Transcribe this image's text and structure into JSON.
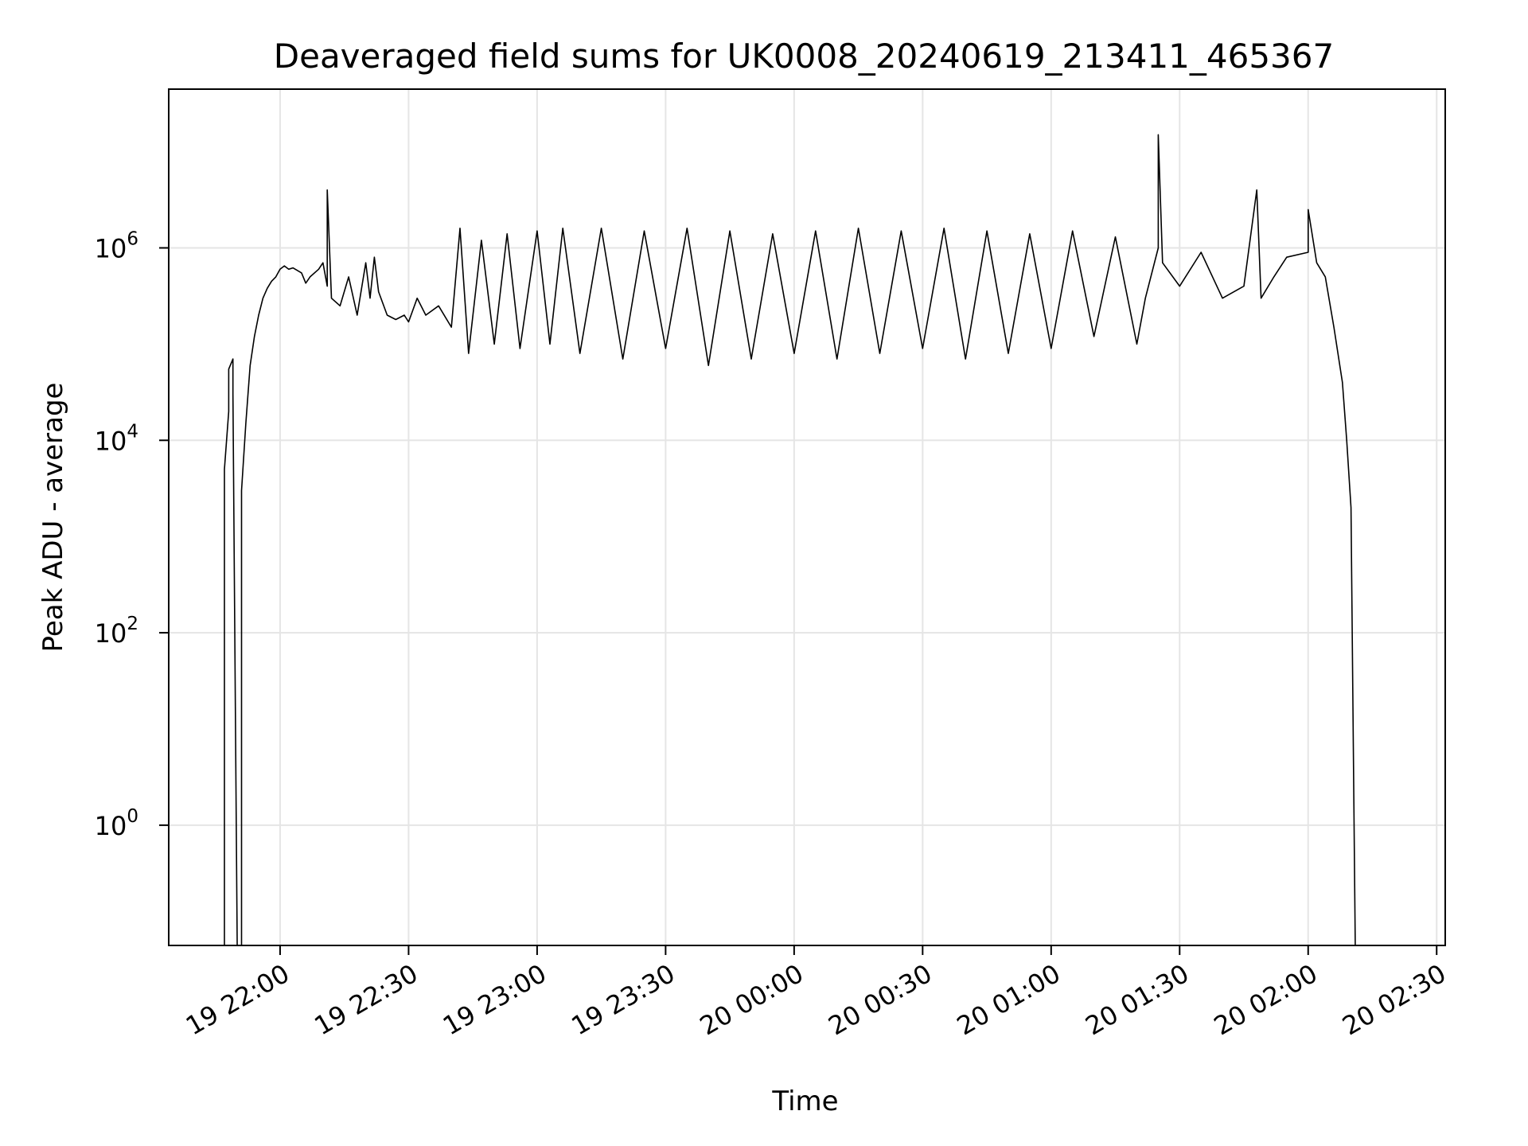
{
  "chart_data": {
    "type": "line",
    "title": "Deaveraged field sums for UK0008_20240619_213411_465367",
    "xlabel": "Time",
    "ylabel": "Peak ADU - average",
    "y_scale": "log",
    "grid": true,
    "legend": "none",
    "line_color": "#000000",
    "xlim": [
      "19 21:34",
      "20 02:32"
    ],
    "ylim_exponent": [
      -1.25,
      7.65
    ],
    "x_ticks": [
      "19 22:00",
      "19 22:30",
      "19 23:00",
      "19 23:30",
      "20 00:00",
      "20 00:30",
      "20 01:00",
      "20 01:30",
      "20 02:00",
      "20 02:30"
    ],
    "y_ticks": [
      {
        "base": "10",
        "exp": "0",
        "value": 1
      },
      {
        "base": "10",
        "exp": "2",
        "value": 100
      },
      {
        "base": "10",
        "exp": "4",
        "value": 10000
      },
      {
        "base": "10",
        "exp": "6",
        "value": 1000000
      }
    ],
    "series": [
      {
        "values_note_format": "[time, peak_adu]",
        "points": [
          [
            "19 21:47",
            0.05
          ],
          [
            "19 21:47",
            5000
          ],
          [
            "19 21:48",
            20000
          ],
          [
            "19 21:48",
            55000
          ],
          [
            "19 21:49",
            70000
          ],
          [
            "19 21:49",
            30000
          ],
          [
            "19 21:50",
            0.05
          ],
          [
            "19 21:51",
            0.05
          ],
          [
            "19 21:51",
            1.0
          ],
          [
            "19 21:51",
            3000
          ],
          [
            "19 21:52",
            15000
          ],
          [
            "19 21:53",
            60000
          ],
          [
            "19 21:54",
            120000
          ],
          [
            "19 21:55",
            200000
          ],
          [
            "19 21:56",
            300000
          ],
          [
            "19 21:57",
            380000
          ],
          [
            "19 21:58",
            450000
          ],
          [
            "19 21:59",
            500000
          ],
          [
            "19 22:00",
            600000
          ],
          [
            "19 22:01",
            650000
          ],
          [
            "19 22:02",
            600000
          ],
          [
            "19 22:03",
            620000
          ],
          [
            "19 22:05",
            550000
          ],
          [
            "19 22:06",
            430000
          ],
          [
            "19 22:07",
            500000
          ],
          [
            "19 22:09",
            600000
          ],
          [
            "19 22:10",
            700000
          ],
          [
            "19 22:11",
            400000
          ],
          [
            "19 22:11",
            4000000
          ],
          [
            "19 22:12",
            300000
          ],
          [
            "19 22:14",
            250000
          ],
          [
            "19 22:16",
            500000
          ],
          [
            "19 22:18",
            200000
          ],
          [
            "19 22:20",
            700000
          ],
          [
            "19 22:21",
            300000
          ],
          [
            "19 22:22",
            800000
          ],
          [
            "19 22:23",
            350000
          ],
          [
            "19 22:25",
            200000
          ],
          [
            "19 22:27",
            180000
          ],
          [
            "19 22:29",
            200000
          ],
          [
            "19 22:30",
            170000
          ],
          [
            "19 22:32",
            300000
          ],
          [
            "19 22:34",
            200000
          ],
          [
            "19 22:37",
            250000
          ],
          [
            "19 22:40",
            150000
          ],
          [
            "19 22:42",
            1600000
          ],
          [
            "19 22:44",
            80000
          ],
          [
            "19 22:47",
            1200000
          ],
          [
            "19 22:50",
            100000
          ],
          [
            "19 22:53",
            1400000
          ],
          [
            "19 22:56",
            90000
          ],
          [
            "19 23:00",
            1500000
          ],
          [
            "19 23:03",
            100000
          ],
          [
            "19 23:06",
            1600000
          ],
          [
            "19 23:10",
            80000
          ],
          [
            "19 23:15",
            1600000
          ],
          [
            "19 23:20",
            70000
          ],
          [
            "19 23:25",
            1500000
          ],
          [
            "19 23:30",
            90000
          ],
          [
            "19 23:35",
            1600000
          ],
          [
            "19 23:40",
            60000
          ],
          [
            "19 23:45",
            1500000
          ],
          [
            "19 23:50",
            70000
          ],
          [
            "19 23:55",
            1400000
          ],
          [
            "20 00:00",
            80000
          ],
          [
            "20 00:05",
            1500000
          ],
          [
            "20 00:10",
            70000
          ],
          [
            "20 00:15",
            1600000
          ],
          [
            "20 00:20",
            80000
          ],
          [
            "20 00:25",
            1500000
          ],
          [
            "20 00:30",
            90000
          ],
          [
            "20 00:35",
            1600000
          ],
          [
            "20 00:40",
            70000
          ],
          [
            "20 00:45",
            1500000
          ],
          [
            "20 00:50",
            80000
          ],
          [
            "20 00:55",
            1400000
          ],
          [
            "20 01:00",
            90000
          ],
          [
            "20 01:05",
            1500000
          ],
          [
            "20 01:10",
            120000
          ],
          [
            "20 01:15",
            1300000
          ],
          [
            "20 01:20",
            100000
          ],
          [
            "20 01:22",
            300000
          ],
          [
            "20 01:25",
            1000000
          ],
          [
            "20 01:25",
            15000000
          ],
          [
            "20 01:26",
            700000
          ],
          [
            "20 01:30",
            400000
          ],
          [
            "20 01:35",
            900000
          ],
          [
            "20 01:40",
            300000
          ],
          [
            "20 01:45",
            400000
          ],
          [
            "20 01:48",
            4000000
          ],
          [
            "20 01:49",
            300000
          ],
          [
            "20 01:52",
            500000
          ],
          [
            "20 01:55",
            800000
          ],
          [
            "20 02:00",
            900000
          ],
          [
            "20 02:00",
            2500000
          ],
          [
            "20 02:02",
            700000
          ],
          [
            "20 02:04",
            500000
          ],
          [
            "20 02:06",
            150000
          ],
          [
            "20 02:08",
            40000
          ],
          [
            "20 02:09",
            10000
          ],
          [
            "20 02:10",
            2000
          ],
          [
            "20 02:11",
            0.05
          ]
        ]
      }
    ]
  }
}
